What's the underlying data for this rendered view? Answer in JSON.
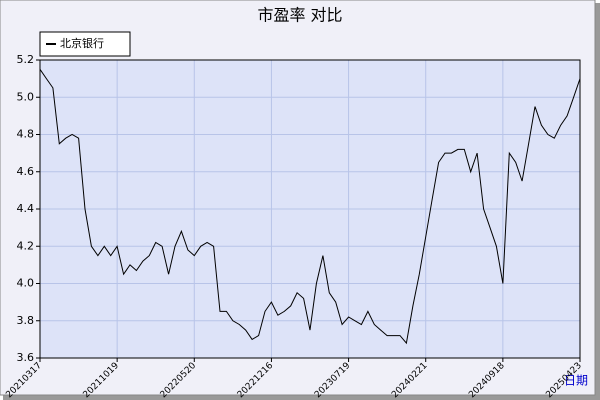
{
  "chart_data": {
    "type": "line",
    "title": "市盈率  对比",
    "x_label": "日期",
    "x": [
      "20210317",
      null,
      null,
      null,
      null,
      null,
      null,
      null,
      null,
      null,
      null,
      null,
      "20211019",
      null,
      null,
      null,
      null,
      null,
      null,
      null,
      null,
      null,
      null,
      null,
      "20220520",
      null,
      null,
      null,
      null,
      null,
      null,
      null,
      null,
      null,
      null,
      null,
      "20221216",
      null,
      null,
      null,
      null,
      null,
      null,
      null,
      null,
      null,
      null,
      null,
      "20230719",
      null,
      null,
      null,
      null,
      null,
      null,
      null,
      null,
      null,
      null,
      null,
      "20240221",
      null,
      null,
      null,
      null,
      null,
      null,
      null,
      null,
      null,
      null,
      null,
      "20240918",
      null,
      null,
      null,
      null,
      null,
      null,
      null,
      null,
      null,
      null,
      null,
      "20250423"
    ],
    "series": [
      {
        "name": "北京银行",
        "color": "#000000",
        "values": [
          5.15,
          5.1,
          5.05,
          4.75,
          4.78,
          4.8,
          4.78,
          4.4,
          4.2,
          4.15,
          4.2,
          4.15,
          4.2,
          4.05,
          4.1,
          4.07,
          4.12,
          4.15,
          4.22,
          4.2,
          4.05,
          4.2,
          4.28,
          4.18,
          4.15,
          4.2,
          4.22,
          4.2,
          3.85,
          3.85,
          3.8,
          3.78,
          3.75,
          3.7,
          3.72,
          3.85,
          3.9,
          3.83,
          3.85,
          3.88,
          3.95,
          3.92,
          3.75,
          4.0,
          4.15,
          3.95,
          3.9,
          3.78,
          3.82,
          3.8,
          3.78,
          3.85,
          3.78,
          3.75,
          3.72,
          3.72,
          3.72,
          3.68,
          3.88,
          4.05,
          4.25,
          4.45,
          4.65,
          4.7,
          4.7,
          4.72,
          4.72,
          4.6,
          4.7,
          4.4,
          4.3,
          4.2,
          4.0,
          4.7,
          4.65,
          4.55,
          4.75,
          4.95,
          4.85,
          4.8,
          4.78,
          4.85,
          4.9,
          5.0,
          5.1
        ]
      }
    ],
    "ylim": [
      3.6,
      5.2
    ],
    "yticks": [
      3.6,
      3.8,
      {
        "value": 4,
        "label": "4.0"
      },
      4.2,
      4.4,
      4.6,
      4.8,
      {
        "value": 5,
        "label": "5.0"
      },
      5.2
    ],
    "grid": true,
    "legend": "top-left"
  }
}
